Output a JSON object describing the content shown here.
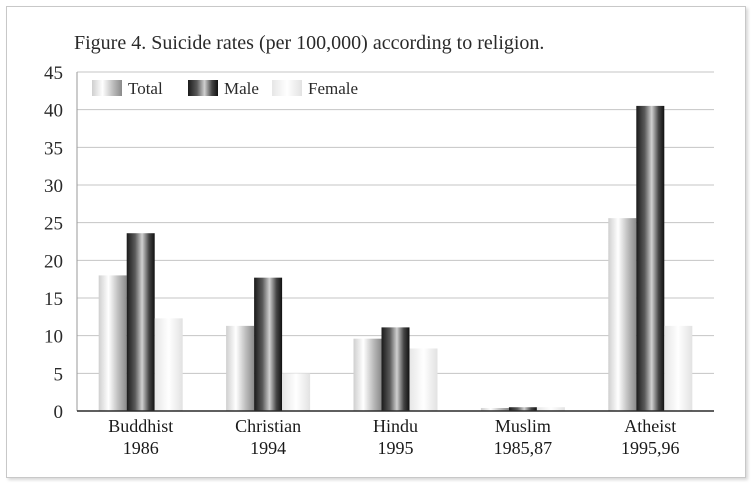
{
  "chart_data": {
    "type": "bar",
    "title": "Figure 4. Suicide rates (per 100,000) according to religion.",
    "categories": [
      {
        "line1": "Buddhist",
        "line2": "1986"
      },
      {
        "line1": "Christian",
        "line2": "1994"
      },
      {
        "line1": "Hindu",
        "line2": "1995"
      },
      {
        "line1": "Muslim",
        "line2": "1985,87"
      },
      {
        "line1": "Atheist",
        "line2": "1995,96"
      }
    ],
    "series": [
      {
        "name": "Total",
        "values": [
          18,
          11.3,
          9.6,
          0.4,
          25.6
        ]
      },
      {
        "name": "Male",
        "values": [
          23.6,
          17.7,
          11.1,
          0.5,
          40.5
        ]
      },
      {
        "name": "Female",
        "values": [
          12.3,
          5,
          8.3,
          0.5,
          11.3
        ]
      }
    ],
    "ylim": [
      0,
      45
    ],
    "yticks": [
      0,
      5,
      10,
      15,
      20,
      25,
      30,
      35,
      40,
      45
    ],
    "grid": true,
    "legend_position": "top-left",
    "xlabel": "",
    "ylabel": ""
  }
}
